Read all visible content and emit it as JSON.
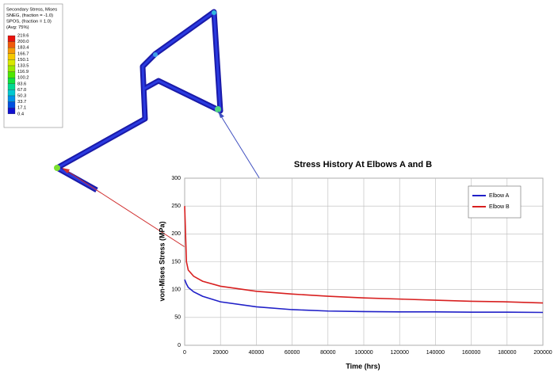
{
  "contour_legend": {
    "title_lines": [
      "Secondary Stress, Mises",
      "SNEG, (fraction = -1.0)",
      "SPOS, (fraction = 1.0)",
      "(Avg: 75%)"
    ],
    "levels": [
      "219.6",
      "200.0",
      "183.4",
      "166.7",
      "150.1",
      "133.5",
      "116.9",
      "100.2",
      "83.6",
      "67.0",
      "50.3",
      "33.7",
      "17.1",
      "0.4"
    ],
    "colors": [
      "#e8120c",
      "#f05a0a",
      "#f59a08",
      "#f5c800",
      "#d8e800",
      "#9be800",
      "#4ee600",
      "#10e040",
      "#00d890",
      "#00c8d0",
      "#0090e8",
      "#0050e0",
      "#1010d0"
    ]
  },
  "chart_data": {
    "type": "line",
    "title": "Stress History At Elbows A and B",
    "x_label": "Time (hrs)",
    "y_label": "von-Mises Stress (MPa)",
    "x": [
      0,
      1000,
      2000,
      5000,
      10000,
      20000,
      40000,
      60000,
      80000,
      100000,
      120000,
      140000,
      160000,
      180000,
      200000
    ],
    "series": [
      {
        "name": "Elbow A",
        "color": "#2020c8",
        "values": [
          118,
          110,
          104,
          96,
          88,
          78,
          69,
          64,
          61.5,
          60.5,
          60,
          60,
          59.5,
          59.5,
          59
        ]
      },
      {
        "name": "Elbow B",
        "color": "#d82020",
        "values": [
          250,
          150,
          135,
          124,
          115,
          106,
          97,
          92,
          88,
          85,
          83,
          81,
          79,
          78,
          76
        ]
      }
    ],
    "xlim": [
      0,
      200000
    ],
    "xticks": [
      0,
      20000,
      40000,
      60000,
      80000,
      100000,
      120000,
      140000,
      160000,
      180000,
      200000
    ],
    "ylim": [
      0,
      300
    ],
    "yticks": [
      0,
      50,
      100,
      150,
      200,
      250,
      300
    ],
    "grid": true,
    "legend": "upper right"
  }
}
